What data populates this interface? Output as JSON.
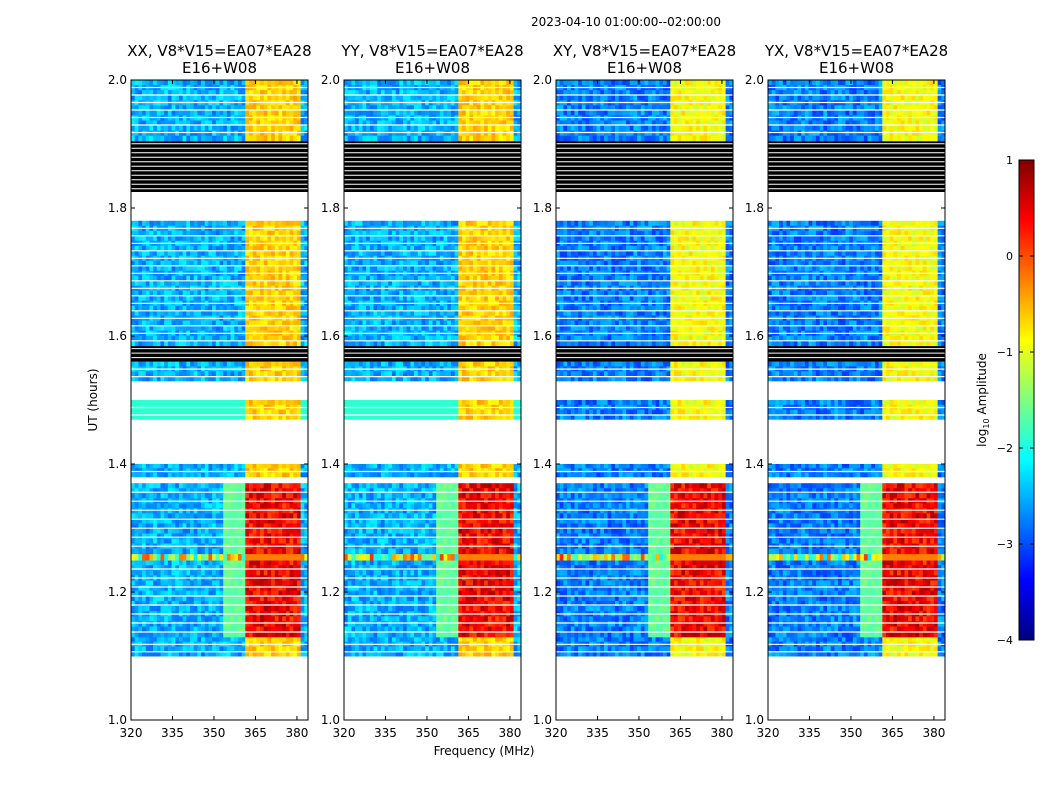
{
  "chart_data": {
    "type": "heatmap",
    "title": "2023-04-10  01:00:00--02:00:00",
    "xlabel": "Frequency (MHz)",
    "ylabel": "UT (hours)",
    "xlim": [
      320,
      384
    ],
    "ylim": [
      1.0,
      2.0
    ],
    "x_ticks": [
      "320",
      "335",
      "350",
      "365",
      "380"
    ],
    "y_ticks": [
      "1.0",
      "1.2",
      "1.4",
      "1.6",
      "1.8",
      "2.0"
    ],
    "colorbar": {
      "label_main": "log",
      "label_sub": "10",
      "label_tail": " Amplitude",
      "range": [
        -4,
        1
      ],
      "ticks": [
        "1",
        "0",
        "−1",
        "−2",
        "−3",
        "−4"
      ]
    },
    "panels": [
      {
        "line1": "XX, V8*V15=EA07*EA28",
        "line2": "E16+W08",
        "kind": "parallel"
      },
      {
        "line1": "YY, V8*V15=EA07*EA28",
        "line2": "E16+W08",
        "kind": "parallel"
      },
      {
        "line1": "XY, V8*V15=EA07*EA28",
        "line2": "E16+W08",
        "kind": "cross"
      },
      {
        "line1": "YX, V8*V15=EA07*EA28",
        "line2": "E16+W08",
        "kind": "cross"
      }
    ],
    "time_segments": [
      {
        "t0": 1.1,
        "t1": 1.13,
        "level": "low"
      },
      {
        "t0": 1.13,
        "t1": 1.25,
        "level": "high"
      },
      {
        "t0": 1.25,
        "t1": 1.26,
        "level": "rfi"
      },
      {
        "t0": 1.26,
        "t1": 1.37,
        "level": "high"
      },
      {
        "t0": 1.38,
        "t1": 1.4,
        "level": "mid"
      },
      {
        "t0": 1.47,
        "t1": 1.5,
        "level": "mid"
      },
      {
        "t0": 1.53,
        "t1": 1.56,
        "level": "mid"
      },
      {
        "t0": 1.56,
        "t1": 1.585,
        "level": "flagged"
      },
      {
        "t0": 1.585,
        "t1": 1.78,
        "level": "mid"
      },
      {
        "t0": 1.825,
        "t1": 1.905,
        "level": "flagged"
      },
      {
        "t0": 1.905,
        "t1": 2.0,
        "level": "mid"
      }
    ],
    "bright_band_mhz": [
      361,
      381
    ]
  }
}
